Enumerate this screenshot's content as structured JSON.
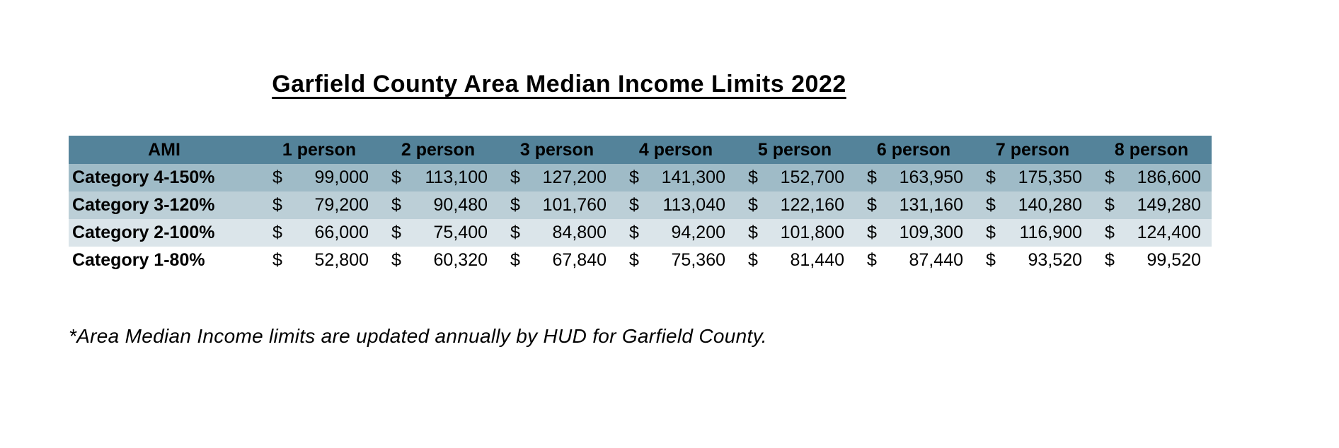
{
  "title": "Garfield County Area Median Income Limits 2022",
  "table": {
    "columns": [
      "AMI",
      "1 person",
      "2 person",
      "3 person",
      "4 person",
      "5 person",
      "6 person",
      "7 person",
      "8 person"
    ],
    "currency_symbol": "$",
    "rows": [
      {
        "label": "Category 4-150%",
        "values": [
          "99,000",
          "113,100",
          "127,200",
          "141,300",
          "152,700",
          "163,950",
          "175,350",
          "186,600"
        ]
      },
      {
        "label": "Category 3-120%",
        "values": [
          "79,200",
          "90,480",
          "101,760",
          "113,040",
          "122,160",
          "131,160",
          "140,280",
          "149,280"
        ]
      },
      {
        "label": "Category 2-100%",
        "values": [
          "66,000",
          "75,400",
          "84,800",
          "94,200",
          "101,800",
          "109,300",
          "116,900",
          "124,400"
        ]
      },
      {
        "label": "Category 1-80%",
        "values": [
          "52,800",
          "60,320",
          "67,840",
          "75,360",
          "81,440",
          "87,440",
          "93,520",
          "99,520"
        ]
      }
    ]
  },
  "footnote": "*Area Median Income limits are updated annually by HUD for Garfield County.",
  "colors": {
    "header_bg": "#54839A",
    "header_text": "#000000",
    "row_bgs": [
      "#9FBBC7",
      "#BCCFD7",
      "#DBE5EA",
      "#FFFFFF"
    ],
    "text": "#000000"
  }
}
